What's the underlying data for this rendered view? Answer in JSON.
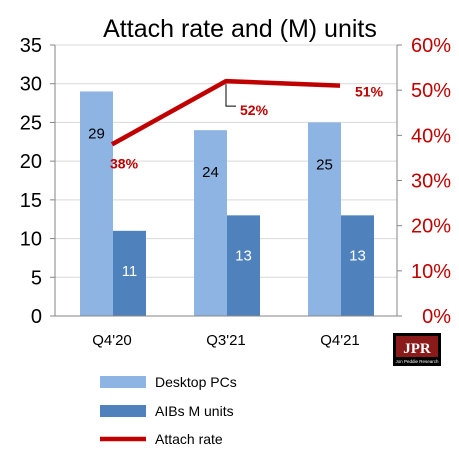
{
  "chart_data": {
    "type": "bar",
    "title": "Attach rate and (M) units",
    "categories": [
      "Q4'20",
      "Q3'21",
      "Q4'21"
    ],
    "series": [
      {
        "name": "Desktop PCs",
        "kind": "bar",
        "values": [
          29,
          24,
          25
        ],
        "labels": [
          "29",
          "24",
          "25"
        ],
        "color": "#8db4e2"
      },
      {
        "name": "AIBs M units",
        "kind": "bar",
        "values": [
          11,
          13,
          13
        ],
        "labels": [
          "11",
          "13",
          "13"
        ],
        "color": "#4f81bd"
      },
      {
        "name": "Attach rate",
        "kind": "line",
        "axis": "right",
        "values": [
          38,
          52,
          51
        ],
        "labels": [
          "38%",
          "52%",
          "51%"
        ],
        "color": "#c00000"
      }
    ],
    "ylim": [
      0,
      35
    ],
    "yticks": [
      "0",
      "5",
      "10",
      "15",
      "20",
      "25",
      "30",
      "35"
    ],
    "y2lim": [
      0,
      60
    ],
    "y2ticks": [
      "0%",
      "10%",
      "20%",
      "30%",
      "40%",
      "50%",
      "60%"
    ],
    "grid": true,
    "legend_position": "bottom-left"
  },
  "logo": {
    "main": "JPR",
    "sub": "Jon Peddie Research"
  }
}
